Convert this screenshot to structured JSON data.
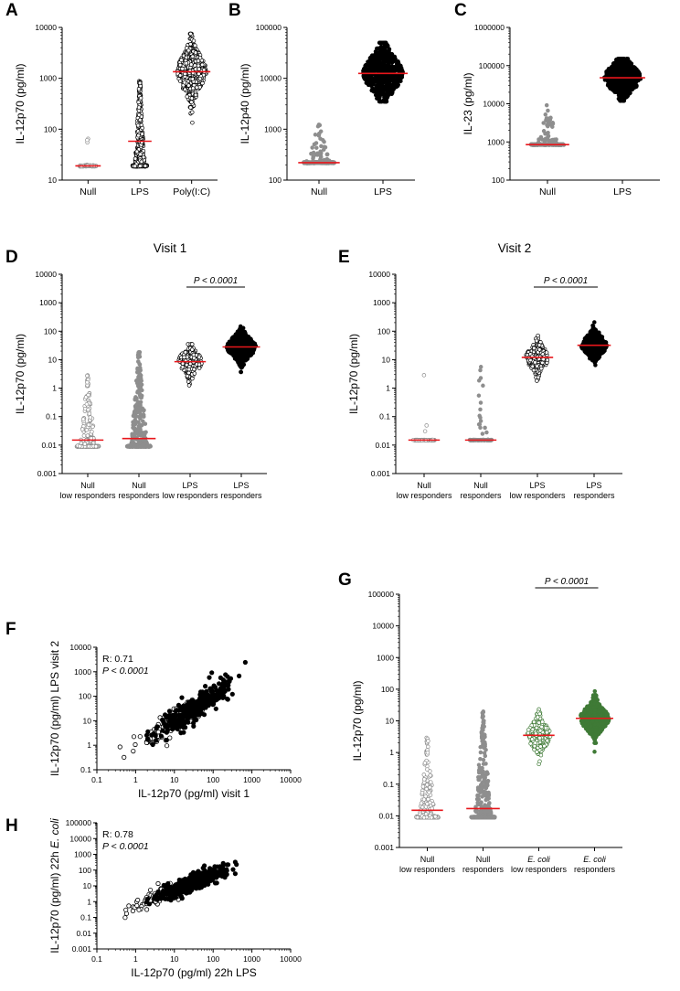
{
  "chart_data": [
    {
      "id": "A",
      "letter": "A",
      "type": "scatter",
      "ylabel": "IL-12p70 (pg/ml)",
      "yscale": "log",
      "ylim": [
        10,
        10000
      ],
      "yticks": [
        "10",
        "100",
        "1000",
        "10000"
      ],
      "categories": [
        {
          "label": "Null",
          "median": 19,
          "style": "hollow-gray",
          "spread": 18,
          "dist": {
            "floor": 19,
            "floor_frac": 0.97,
            "hi": 70,
            "n": 90
          }
        },
        {
          "label": "LPS",
          "median": 58,
          "style": "hollow-black",
          "spread": 16,
          "dist": {
            "floor": 19,
            "floor_frac": 0.3,
            "lo": 20,
            "hi": 900,
            "center": 60,
            "n": 380
          }
        },
        {
          "label": "Poly(I:C)",
          "median": 1350,
          "style": "hollow-black",
          "spread": 30,
          "dist": {
            "lo": 50,
            "hi": 7500,
            "center": 1350,
            "n": 600
          }
        }
      ]
    },
    {
      "id": "B",
      "letter": "B",
      "type": "scatter",
      "ylabel": "IL-12p40 (pg/ml)",
      "yscale": "log",
      "ylim": [
        100,
        100000
      ],
      "yticks": [
        "100",
        "1000",
        "10000",
        "100000"
      ],
      "categories": [
        {
          "label": "Null",
          "median": 220,
          "style": "filled-gray",
          "spread": 34,
          "dist": {
            "floor": 220,
            "floor_frac": 0.8,
            "hi": 1500,
            "n": 260
          }
        },
        {
          "label": "LPS",
          "median": 12500,
          "style": "filled-black",
          "spread": 42,
          "dist": {
            "lo": 3500,
            "hi": 50000,
            "center": 12500,
            "n": 600
          }
        }
      ]
    },
    {
      "id": "C",
      "letter": "C",
      "type": "scatter",
      "ylabel": "IL-23 (pg/ml)",
      "yscale": "log",
      "ylim": [
        100,
        1000000
      ],
      "yticks": [
        "100",
        "1000",
        "10000",
        "100000",
        "1000000"
      ],
      "categories": [
        {
          "label": "Null",
          "median": 850,
          "style": "filled-gray",
          "spread": 36,
          "dist": {
            "floor": 850,
            "floor_frac": 0.8,
            "hi": 12000,
            "n": 260
          }
        },
        {
          "label": "LPS",
          "median": 48000,
          "style": "filled-black",
          "spread": 38,
          "dist": {
            "lo": 12000,
            "hi": 150000,
            "center": 48000,
            "n": 600
          }
        }
      ]
    },
    {
      "id": "D",
      "letter": "D",
      "type": "scatter",
      "title": "Visit 1",
      "ylabel": "IL-12p70 (pg/ml)",
      "yscale": "log",
      "ylim": [
        0.001,
        10000
      ],
      "yticks": [
        "0.001",
        "0.01",
        "0.1",
        "1",
        "10",
        "100",
        "1000",
        "10000"
      ],
      "significance": {
        "text": "P < 0.0001",
        "between": [
          2,
          3
        ]
      },
      "categories": [
        {
          "label": [
            "Null",
            "low responders"
          ],
          "median": 0.015,
          "style": "hollow-gray",
          "spread": 24,
          "dist": {
            "floor": 0.009,
            "floor_frac": 0.55,
            "hi": 3,
            "n": 280
          }
        },
        {
          "label": [
            "Null",
            "responders"
          ],
          "median": 0.017,
          "style": "filled-gray",
          "spread": 26,
          "dist": {
            "floor": 0.009,
            "floor_frac": 0.5,
            "hi": 20,
            "n": 380
          }
        },
        {
          "label": [
            "LPS",
            "low responders"
          ],
          "median": 8.5,
          "style": "hollow-black",
          "spread": 24,
          "dist": {
            "lo": 0.8,
            "hi": 35,
            "center": 8.5,
            "n": 180
          }
        },
        {
          "label": [
            "LPS",
            "responders"
          ],
          "median": 28,
          "style": "filled-black",
          "spread": 30,
          "dist": {
            "lo": 3,
            "hi": 2200,
            "center": 28,
            "n": 500
          }
        }
      ]
    },
    {
      "id": "E",
      "letter": "E",
      "type": "scatter",
      "title": "Visit 2",
      "ylabel": "IL-12p70 (pg/ml)",
      "yscale": "log",
      "ylim": [
        0.001,
        10000
      ],
      "yticks": [
        "0.001",
        "0.01",
        "0.1",
        "1",
        "10",
        "100",
        "1000",
        "10000"
      ],
      "significance": {
        "text": "P < 0.0001",
        "between": [
          2,
          3
        ]
      },
      "categories": [
        {
          "label": [
            "Null",
            "low responders"
          ],
          "median": 0.015,
          "style": "hollow-gray",
          "spread": 24,
          "dist": {
            "floor": 0.015,
            "floor_frac": 0.97,
            "hi": 3,
            "n": 70
          }
        },
        {
          "label": [
            "Null",
            "responders"
          ],
          "median": 0.015,
          "style": "filled-gray",
          "spread": 24,
          "dist": {
            "floor": 0.015,
            "floor_frac": 0.86,
            "hi": 9,
            "n": 120
          }
        },
        {
          "label": [
            "LPS",
            "low responders"
          ],
          "median": 12,
          "style": "hollow-black",
          "spread": 24,
          "dist": {
            "lo": 0.3,
            "hi": 70,
            "center": 12,
            "n": 170
          }
        },
        {
          "label": [
            "LPS",
            "responders"
          ],
          "median": 32,
          "style": "filled-black",
          "spread": 26,
          "dist": {
            "lo": 3,
            "hi": 1000,
            "center": 32,
            "n": 260
          }
        }
      ]
    },
    {
      "id": "F",
      "letter": "F",
      "type": "scatter-xy",
      "xlabel": "IL-12p70 (pg/ml) visit 1",
      "ylabel": "IL-12p70 (pg/ml) LPS visit 2",
      "xscale": "log",
      "yscale": "log",
      "xlim": [
        0.1,
        10000
      ],
      "ylim": [
        0.1,
        10000
      ],
      "xticks": [
        "0.1",
        "1",
        "10",
        "100",
        "1000",
        "10000"
      ],
      "yticks": [
        "0.1",
        "1",
        "10",
        "100",
        "1000",
        "10000"
      ],
      "r_label": "R: 0.71",
      "p_label": "P < 0.0001",
      "cloud": {
        "hollow": {
          "cx": 10,
          "cy": 10,
          "n": 160
        },
        "filled": {
          "cx": 40,
          "cy": 40,
          "n": 340
        }
      }
    },
    {
      "id": "G",
      "letter": "G",
      "type": "scatter",
      "ylabel": "IL-12p70 (pg/ml)",
      "yscale": "log",
      "ylim": [
        0.001,
        100000
      ],
      "yticks": [
        "0.001",
        "0.01",
        "0.1",
        "1",
        "10",
        "100",
        "1000",
        "10000",
        "100000"
      ],
      "significance": {
        "text": "P < 0.0001",
        "between": [
          2,
          3
        ]
      },
      "categories": [
        {
          "label": [
            "Null",
            "low responders"
          ],
          "median": 0.015,
          "style": "hollow-gray",
          "spread": 24,
          "dist": {
            "floor": 0.009,
            "floor_frac": 0.55,
            "hi": 3,
            "n": 280
          }
        },
        {
          "label": [
            "Null",
            "responders"
          ],
          "median": 0.017,
          "style": "filled-gray",
          "spread": 26,
          "dist": {
            "floor": 0.009,
            "floor_frac": 0.5,
            "hi": 20,
            "n": 380
          }
        },
        {
          "label": [
            "E. coli",
            "low responders"
          ],
          "median": 3.5,
          "style": "hollow-green",
          "spread": 24,
          "dist": {
            "lo": 0.004,
            "hi": 30,
            "center": 3.5,
            "n": 200
          }
        },
        {
          "label": [
            "E. coli",
            "responders"
          ],
          "median": 12,
          "style": "filled-green",
          "spread": 30,
          "dist": {
            "lo": 0.06,
            "hi": 11000,
            "center": 12,
            "n": 520
          }
        }
      ]
    },
    {
      "id": "H",
      "letter": "H",
      "type": "scatter-xy",
      "xlabel": "IL-12p70 (pg/ml) 22h LPS",
      "ylabel": "IL-12p70 (pg/ml) 22h E. coli",
      "xscale": "log",
      "yscale": "log",
      "xlim": [
        0.1,
        10000
      ],
      "ylim": [
        0.001,
        100000
      ],
      "xticks": [
        "0.1",
        "1",
        "10",
        "100",
        "1000",
        "10000"
      ],
      "yticks": [
        "0.001",
        "0.01",
        "0.1",
        "1",
        "10",
        "100",
        "1000",
        "10000",
        "100000"
      ],
      "r_label": "R: 0.78",
      "p_label": "P < 0.0001",
      "cloud": {
        "hollow": {
          "cx": 6,
          "cy": 3,
          "n": 160
        },
        "filled": {
          "cx": 30,
          "cy": 15,
          "n": 420
        }
      }
    }
  ],
  "colors": {
    "median_line": "#e8161b",
    "black": "#000000",
    "gray": "#8e8e8e",
    "green": "#3f7a36"
  }
}
